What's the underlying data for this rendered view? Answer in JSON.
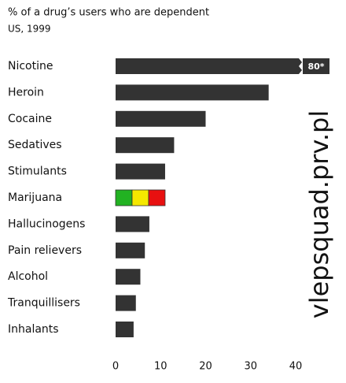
{
  "chart_data": {
    "type": "bar",
    "orientation": "horizontal",
    "title": "% of a drug’s users who are dependent",
    "subtitle": "US, 1999",
    "categories": [
      "Nicotine",
      "Heroin",
      "Cocaine",
      "Sedatives",
      "Stimulants",
      "Marijuana",
      "Hallucinogens",
      "Pain relievers",
      "Alcohol",
      "Tranquillisers",
      "Inhalants"
    ],
    "values": [
      80,
      34,
      20,
      13,
      11,
      11,
      7.5,
      6.5,
      5.5,
      4.5,
      4
    ],
    "value_labels": [
      "80*",
      null,
      null,
      null,
      null,
      null,
      null,
      null,
      null,
      null,
      null
    ],
    "colors": [
      "#333333",
      "#333333",
      "#333333",
      "#333333",
      "#333333",
      [
        "#22b222",
        "#f5e800",
        "#e81010"
      ],
      "#333333",
      "#333333",
      "#333333",
      "#333333",
      "#333333"
    ],
    "xlim": [
      0,
      40
    ],
    "xticks": [
      0,
      10,
      20,
      30,
      40
    ],
    "annotation": "vlepsquad.prv.pl"
  }
}
